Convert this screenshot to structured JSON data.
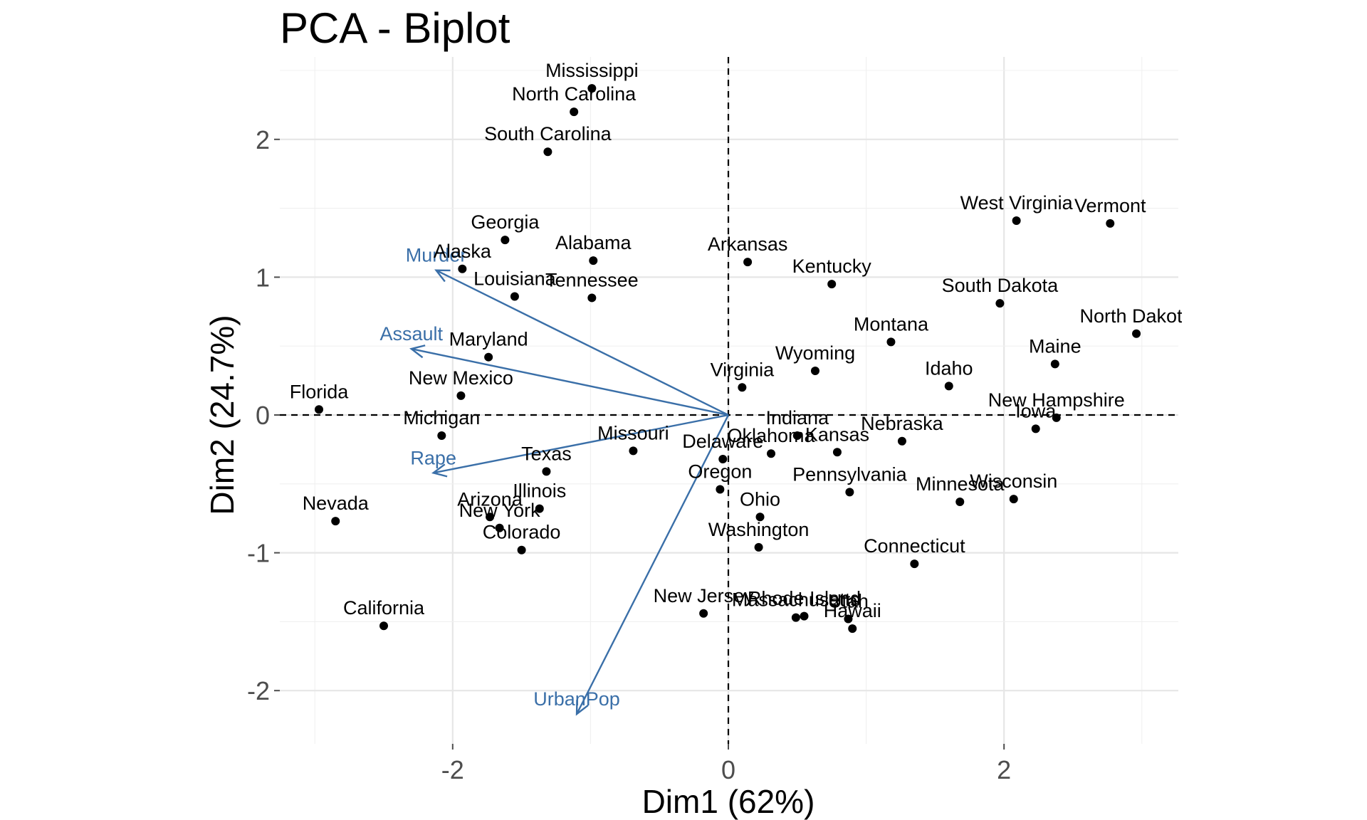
{
  "chart_data": {
    "type": "scatter",
    "title": "PCA - Biplot",
    "xlabel": "Dim1 (62%)",
    "ylabel": "Dim2 (24.7%)",
    "xlim": [
      -3.3,
      3.3
    ],
    "ylim": [
      -2.4,
      2.6
    ],
    "xticks": [
      -2,
      0,
      2
    ],
    "yticks": [
      -2,
      -1,
      0,
      1,
      2
    ],
    "grid": true,
    "reference_lines": {
      "x": 0,
      "y": 0,
      "style": "dashed"
    },
    "colors": {
      "points": "#000000",
      "variables": "#3a6fa8"
    },
    "points": [
      {
        "label": "Mississippi",
        "x": -0.99,
        "y": 2.37
      },
      {
        "label": "North Carolina",
        "x": -1.12,
        "y": 2.2
      },
      {
        "label": "South Carolina",
        "x": -1.31,
        "y": 1.91
      },
      {
        "label": "Georgia",
        "x": -1.62,
        "y": 1.27
      },
      {
        "label": "Alaska",
        "x": -1.93,
        "y": 1.06
      },
      {
        "label": "Alabama",
        "x": -0.98,
        "y": 1.12
      },
      {
        "label": "Louisiana",
        "x": -1.55,
        "y": 0.86
      },
      {
        "label": "Tennessee",
        "x": -0.99,
        "y": 0.85
      },
      {
        "label": "Arkansas",
        "x": 0.14,
        "y": 1.11
      },
      {
        "label": "Kentucky",
        "x": 0.75,
        "y": 0.95
      },
      {
        "label": "West Virginia",
        "x": 2.09,
        "y": 1.41
      },
      {
        "label": "Vermont",
        "x": 2.77,
        "y": 1.39
      },
      {
        "label": "South Dakota",
        "x": 1.97,
        "y": 0.81
      },
      {
        "label": "North Dakota",
        "x": 2.96,
        "y": 0.59
      },
      {
        "label": "Montana",
        "x": 1.18,
        "y": 0.53
      },
      {
        "label": "Maine",
        "x": 2.37,
        "y": 0.37
      },
      {
        "label": "Idaho",
        "x": 1.6,
        "y": 0.21
      },
      {
        "label": "Wyoming",
        "x": 0.63,
        "y": 0.32
      },
      {
        "label": "Virginia",
        "x": 0.1,
        "y": 0.2
      },
      {
        "label": "Maryland",
        "x": -1.74,
        "y": 0.42
      },
      {
        "label": "New Mexico",
        "x": -1.94,
        "y": 0.14
      },
      {
        "label": "Florida",
        "x": -2.97,
        "y": 0.04
      },
      {
        "label": "Michigan",
        "x": -2.08,
        "y": -0.15
      },
      {
        "label": "New Hampshire",
        "x": 2.38,
        "y": -0.02
      },
      {
        "label": "Iowa",
        "x": 2.23,
        "y": -0.1
      },
      {
        "label": "Nebraska",
        "x": 1.26,
        "y": -0.19
      },
      {
        "label": "Indiana",
        "x": 0.5,
        "y": -0.15
      },
      {
        "label": "Kansas",
        "x": 0.79,
        "y": -0.27
      },
      {
        "label": "Oklahoma",
        "x": 0.31,
        "y": -0.28
      },
      {
        "label": "Delaware",
        "x": -0.04,
        "y": -0.32
      },
      {
        "label": "Missouri",
        "x": -0.69,
        "y": -0.26
      },
      {
        "label": "Texas",
        "x": -1.32,
        "y": -0.41
      },
      {
        "label": "Oregon",
        "x": -0.06,
        "y": -0.54
      },
      {
        "label": "Pennsylvania",
        "x": 0.88,
        "y": -0.56
      },
      {
        "label": "Minnesota",
        "x": 1.68,
        "y": -0.63
      },
      {
        "label": "Wisconsin",
        "x": 2.07,
        "y": -0.61
      },
      {
        "label": "Illinois",
        "x": -1.37,
        "y": -0.68
      },
      {
        "label": "Arizona",
        "x": -1.73,
        "y": -0.74
      },
      {
        "label": "New York",
        "x": -1.66,
        "y": -0.82
      },
      {
        "label": "Colorado",
        "x": -1.5,
        "y": -0.98
      },
      {
        "label": "Ohio",
        "x": 0.23,
        "y": -0.74
      },
      {
        "label": "Washington",
        "x": 0.22,
        "y": -0.96
      },
      {
        "label": "Nevada",
        "x": -2.85,
        "y": -0.77
      },
      {
        "label": "Connecticut",
        "x": 1.35,
        "y": -1.08
      },
      {
        "label": "New Jersey",
        "x": -0.18,
        "y": -1.44
      },
      {
        "label": "Massachusetts",
        "x": 0.49,
        "y": -1.47
      },
      {
        "label": "Rhode Island",
        "x": 0.55,
        "y": -1.46
      },
      {
        "label": "Utah",
        "x": 0.87,
        "y": -1.48
      },
      {
        "label": "Hawaii",
        "x": 0.9,
        "y": -1.55
      },
      {
        "label": "California",
        "x": -2.5,
        "y": -1.53
      }
    ],
    "variables": [
      {
        "label": "Murder",
        "x": -2.12,
        "y": 1.05
      },
      {
        "label": "Assault",
        "x": -2.3,
        "y": 0.48
      },
      {
        "label": "Rape",
        "x": -2.14,
        "y": -0.42
      },
      {
        "label": "UrbanPop",
        "x": -1.1,
        "y": -2.17
      }
    ]
  }
}
